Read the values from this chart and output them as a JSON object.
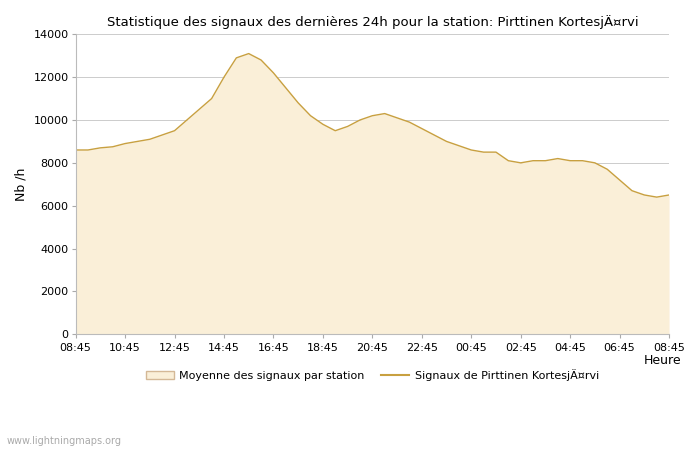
{
  "title": "Statistique des signaux des dernières 24h pour la station: Pirttinen KortesjÄ¤rvi",
  "xlabel": "Heure",
  "ylabel": "Nb /h",
  "watermark": "www.lightningmaps.org",
  "legend_fill": "Moyenne des signaux par station",
  "legend_line": "Signaux de Pirttinen KortesjÄ¤rvi",
  "x_labels": [
    "08:45",
    "10:45",
    "12:45",
    "14:45",
    "16:45",
    "18:45",
    "20:45",
    "22:45",
    "00:45",
    "02:45",
    "04:45",
    "06:45",
    "08:45"
  ],
  "ylim": [
    0,
    14000
  ],
  "yticks": [
    0,
    2000,
    4000,
    6000,
    8000,
    10000,
    12000,
    14000
  ],
  "fill_color": "#FAEFD8",
  "fill_edge_color": "#D4B896",
  "line_color": "#C8A040",
  "background_color": "#FFFFFF",
  "grid_color": "#CCCCCC",
  "x_values": [
    0,
    1,
    2,
    3,
    4,
    5,
    6,
    7,
    8,
    9,
    10,
    11,
    12,
    13,
    14,
    15,
    16,
    17,
    18,
    19,
    20,
    21,
    22,
    23,
    24,
    25,
    26,
    27,
    28,
    29,
    30,
    31,
    32,
    33,
    34,
    35,
    36,
    37,
    38,
    39,
    40,
    41,
    42,
    43,
    44,
    45,
    46,
    47,
    48
  ],
  "area_values": [
    8600,
    8600,
    8700,
    8750,
    8900,
    9000,
    9100,
    9300,
    9500,
    10000,
    10500,
    11000,
    12000,
    12900,
    13100,
    12800,
    12200,
    11500,
    10800,
    10200,
    9800,
    9500,
    9700,
    10000,
    10200,
    10300,
    10100,
    9900,
    9600,
    9300,
    9000,
    8800,
    8600,
    8500,
    8500,
    8100,
    8000,
    8100,
    8100,
    8200,
    8100,
    8100,
    8000,
    7700,
    7200,
    6700,
    6500,
    6400,
    6500
  ],
  "line_values": [
    8600,
    8600,
    8700,
    8750,
    8900,
    9000,
    9100,
    9300,
    9500,
    10000,
    10500,
    11000,
    12000,
    12900,
    13100,
    12800,
    12200,
    11500,
    10800,
    10200,
    9800,
    9500,
    9700,
    10000,
    10200,
    10300,
    10100,
    9900,
    9600,
    9300,
    9000,
    8800,
    8600,
    8500,
    8500,
    8100,
    8000,
    8100,
    8100,
    8200,
    8100,
    8100,
    8000,
    7700,
    7200,
    6700,
    6500,
    6400,
    6500
  ]
}
